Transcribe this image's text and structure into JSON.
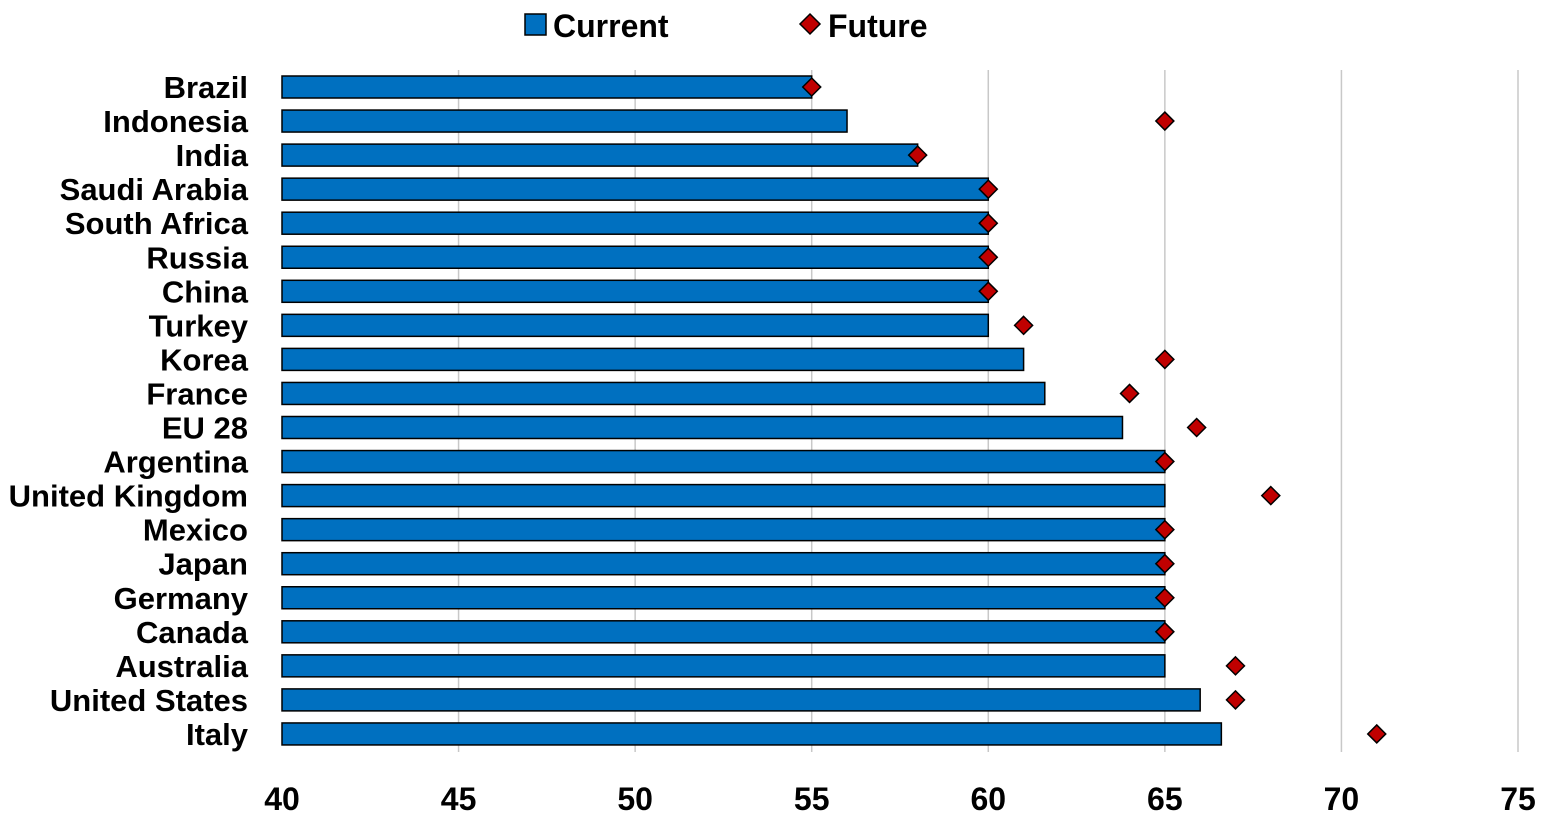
{
  "chart_data": {
    "type": "bar",
    "orientation": "horizontal",
    "categories": [
      "Brazil",
      "Indonesia",
      "India",
      "Saudi Arabia",
      "South Africa",
      "Russia",
      "China",
      "Turkey",
      "Korea",
      "France",
      "EU 28",
      "Argentina",
      "United Kingdom",
      "Mexico",
      "Japan",
      "Germany",
      "Canada",
      "Australia",
      "United States",
      "Italy"
    ],
    "series": [
      {
        "name": "Current",
        "kind": "bar",
        "color": "#0070C0",
        "values": [
          55,
          56,
          58,
          60,
          60,
          60,
          60,
          60,
          61,
          61.6,
          63.8,
          65,
          65,
          65,
          65,
          65,
          65,
          65,
          66,
          66.6
        ]
      },
      {
        "name": "Future",
        "kind": "marker",
        "marker": "diamond",
        "color": "#C00000",
        "values": [
          55,
          65,
          58,
          60,
          60,
          60,
          60,
          61,
          65,
          64,
          65.9,
          65,
          68,
          65,
          65,
          65,
          65,
          67,
          67,
          71
        ]
      }
    ],
    "xlim": [
      40,
      75
    ],
    "xticks": [
      40,
      45,
      50,
      55,
      60,
      65,
      70,
      75
    ],
    "title": "",
    "xlabel": "",
    "ylabel": "",
    "grid": {
      "vertical": true,
      "horizontal": false
    },
    "legend_position": "top-center"
  }
}
